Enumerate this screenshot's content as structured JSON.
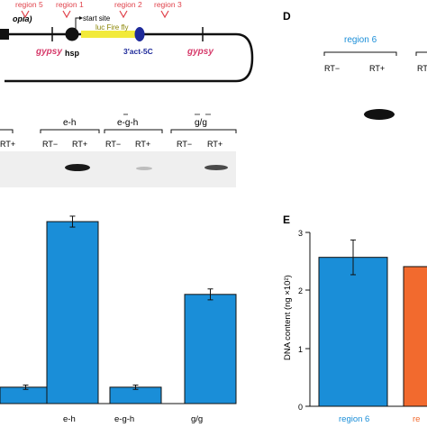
{
  "construct": {
    "fragment_left": "opia)",
    "gypsy_left": "gypsy",
    "gypsy_right": "gypsy",
    "hsp": "hsp",
    "start_site": "start site",
    "luc_label": "luc Fire fly",
    "act_label": "3′act-5C",
    "regions": [
      "region 5",
      "region 1",
      "region 2",
      "region 3"
    ]
  },
  "gel_left": {
    "groups": [
      "e-h",
      "e-g-h",
      "g/g"
    ],
    "lanes": [
      "RT+",
      "RT−",
      "RT+",
      "RT−",
      "RT+",
      "RT−",
      "RT+"
    ]
  },
  "panel_d": {
    "letter": "D",
    "group": "region 6",
    "lanes": [
      "RT−",
      "RT+",
      "RT"
    ]
  },
  "panel_e": {
    "letter": "E",
    "ylabel": "DNA content (ng ×10²)",
    "yticks": [
      "0",
      "1",
      "2",
      "3"
    ],
    "xlabel_visible": "region 6",
    "xlabel_cut": "re"
  },
  "colors": {
    "bar_blue": "#1a8ed8",
    "bar_orange": "#f26a2e",
    "region_red": "#e0424b",
    "gypsy_pink": "#d63a6a",
    "luc_yellow": "#f2ea3a",
    "act_blue": "#1e2a9a"
  },
  "chart_data": [
    {
      "type": "bar",
      "categories": [
        "",
        "e-h",
        "e-g-h",
        "g/g"
      ],
      "values": [
        0.09,
        1.0,
        0.09,
        0.6
      ],
      "errors": [
        0.012,
        0.03,
        0.012,
        0.03
      ],
      "xlabel": "",
      "ylabel": ""
    },
    {
      "type": "bar",
      "categories": [
        "region 6",
        "re"
      ],
      "values": [
        2.57,
        2.41
      ],
      "errors": [
        0.3,
        0.0
      ],
      "ylim": [
        0,
        3
      ],
      "ylabel": "DNA content (ng ×10²)"
    }
  ]
}
